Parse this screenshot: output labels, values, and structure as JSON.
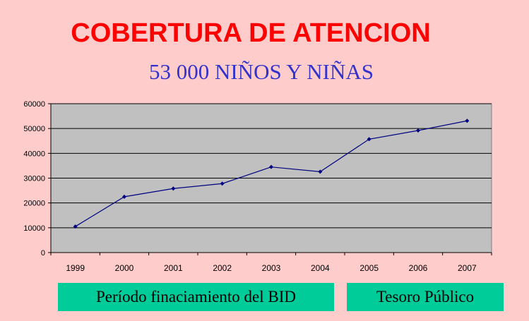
{
  "chart_data": {
    "type": "line",
    "title": "COBERTURA DE ATENCION",
    "subtitle": "53 000 NIÑOS Y NIÑAS",
    "categories": [
      "1999",
      "2000",
      "2001",
      "2002",
      "2003",
      "2004",
      "2005",
      "2006",
      "2007"
    ],
    "series": [
      {
        "values": [
          10500,
          22500,
          25800,
          27800,
          34500,
          32600,
          45700,
          49200,
          53100
        ]
      }
    ],
    "ylim": [
      0,
      60000
    ],
    "yticks": [
      "0",
      "10000",
      "20000",
      "30000",
      "40000",
      "50000",
      "60000"
    ],
    "grid": true,
    "plot_background": "#c0c0c0",
    "line_color": "#000080"
  },
  "labels": {
    "bid_period": "Período  finaciamiento del BID",
    "tesoro": "Tesoro Público"
  },
  "colors": {
    "background": "#ffcccc",
    "title": "#ff0000",
    "subtitle": "#3333cc",
    "label_box": "#00cc99"
  }
}
